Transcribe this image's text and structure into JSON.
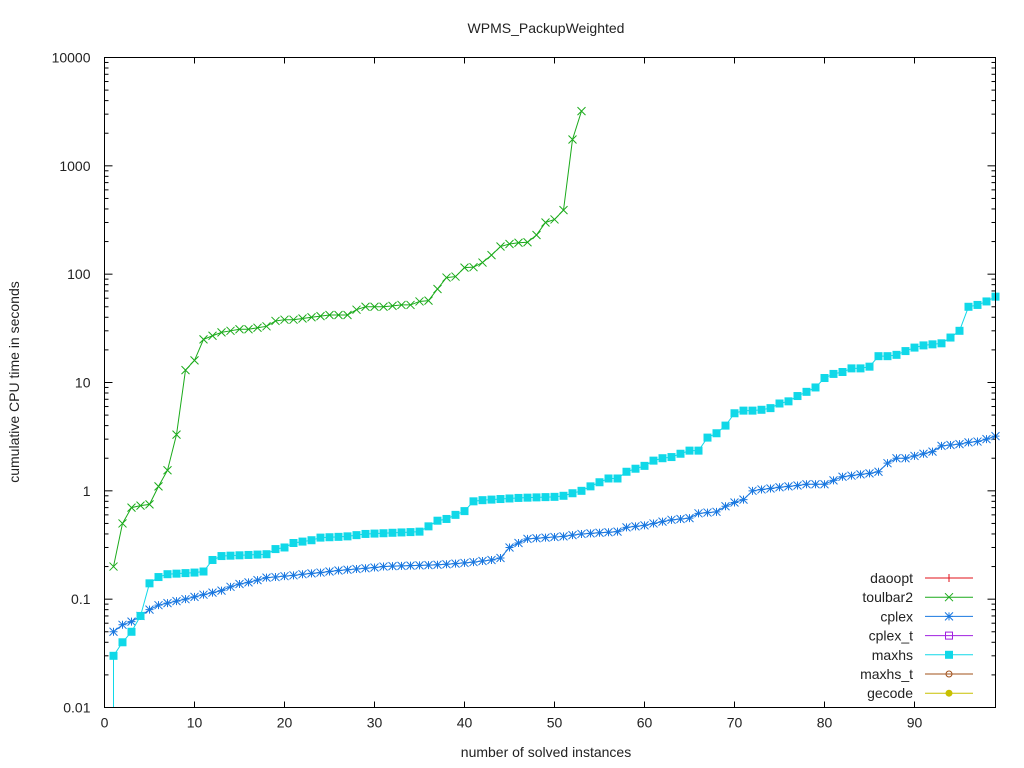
{
  "chart_data": {
    "type": "line",
    "title": "WPMS_PackupWeighted",
    "xlabel": "number of solved instances",
    "ylabel": "cumulative CPU time in seconds",
    "xlim": [
      0,
      99
    ],
    "ylim": [
      0.01,
      10000
    ],
    "yscale": "log",
    "xticks": [
      0,
      10,
      20,
      30,
      40,
      50,
      60,
      70,
      80,
      90
    ],
    "xtick_labels": [
      "0",
      "10",
      "20",
      "30",
      "40",
      "50",
      "60",
      "70",
      "80",
      "90"
    ],
    "yticks": [
      0.01,
      0.1,
      1,
      10,
      100,
      1000,
      10000
    ],
    "ytick_labels": [
      "0.01",
      "0.1",
      "1",
      "10",
      "100",
      "1000",
      "10000"
    ],
    "legend_position": "bottom-right",
    "series": [
      {
        "name": "daoopt",
        "color": "#e0101a",
        "marker": "plus",
        "values": []
      },
      {
        "name": "toulbar2",
        "color": "#1aaa1a",
        "marker": "x",
        "values": [
          0.2,
          0.5,
          0.7,
          0.73,
          0.75,
          1.1,
          1.55,
          3.3,
          13,
          16,
          25,
          27,
          29,
          30,
          31,
          31,
          32,
          33,
          37,
          38,
          38,
          39,
          40,
          41,
          42,
          42,
          42,
          47,
          50,
          50,
          50,
          51,
          52,
          52,
          56,
          57,
          73,
          93,
          95,
          115,
          116,
          128,
          150,
          180,
          190,
          195,
          197,
          230,
          300,
          320,
          390,
          1750,
          3200
        ]
      },
      {
        "name": "cplex",
        "color": "#1a78e0",
        "marker": "star",
        "values": [
          0.05,
          0.058,
          0.062,
          0.07,
          0.08,
          0.088,
          0.092,
          0.096,
          0.1,
          0.105,
          0.11,
          0.115,
          0.12,
          0.13,
          0.138,
          0.143,
          0.15,
          0.158,
          0.16,
          0.163,
          0.166,
          0.17,
          0.173,
          0.176,
          0.18,
          0.184,
          0.187,
          0.19,
          0.193,
          0.196,
          0.2,
          0.202,
          0.203,
          0.204,
          0.205,
          0.206,
          0.208,
          0.21,
          0.213,
          0.216,
          0.22,
          0.225,
          0.23,
          0.24,
          0.3,
          0.33,
          0.36,
          0.365,
          0.37,
          0.375,
          0.38,
          0.39,
          0.4,
          0.405,
          0.41,
          0.415,
          0.42,
          0.46,
          0.47,
          0.48,
          0.5,
          0.52,
          0.54,
          0.55,
          0.56,
          0.62,
          0.63,
          0.64,
          0.72,
          0.78,
          0.83,
          1.0,
          1.03,
          1.05,
          1.08,
          1.1,
          1.12,
          1.15,
          1.15,
          1.15,
          1.25,
          1.35,
          1.38,
          1.42,
          1.45,
          1.5,
          1.8,
          2.0,
          2.0,
          2.1,
          2.2,
          2.3,
          2.6,
          2.65,
          2.7,
          2.8,
          2.85,
          3.0,
          3.2
        ]
      },
      {
        "name": "cplex_t",
        "color": "#a020e0",
        "marker": "open-square",
        "values": []
      },
      {
        "name": "maxhs",
        "color": "#10d8e8",
        "marker": "filled-square",
        "values": [
          0.03,
          0.04,
          0.05,
          0.07,
          0.14,
          0.16,
          0.17,
          0.172,
          0.174,
          0.176,
          0.18,
          0.23,
          0.25,
          0.252,
          0.254,
          0.256,
          0.258,
          0.26,
          0.29,
          0.3,
          0.33,
          0.34,
          0.35,
          0.37,
          0.373,
          0.376,
          0.38,
          0.39,
          0.4,
          0.403,
          0.406,
          0.41,
          0.413,
          0.416,
          0.42,
          0.47,
          0.53,
          0.55,
          0.6,
          0.65,
          0.8,
          0.82,
          0.83,
          0.84,
          0.85,
          0.86,
          0.865,
          0.87,
          0.875,
          0.88,
          0.9,
          0.95,
          1.0,
          1.1,
          1.2,
          1.3,
          1.3,
          1.5,
          1.6,
          1.7,
          1.9,
          2.0,
          2.05,
          2.2,
          2.35,
          2.35,
          3.1,
          3.4,
          4.0,
          5.2,
          5.5,
          5.5,
          5.6,
          5.8,
          6.4,
          6.7,
          7.5,
          8.2,
          9.0,
          11,
          12,
          12.5,
          13.5,
          13.5,
          14,
          17.5,
          17.5,
          18,
          19.5,
          21,
          22,
          22.5,
          23,
          26,
          30,
          50,
          52,
          56,
          62
        ]
      },
      {
        "name": "maxhs_t",
        "color": "#a0501a",
        "marker": "open-circle",
        "values": []
      },
      {
        "name": "gecode",
        "color": "#c8c000",
        "marker": "filled-circle",
        "values": []
      }
    ]
  }
}
